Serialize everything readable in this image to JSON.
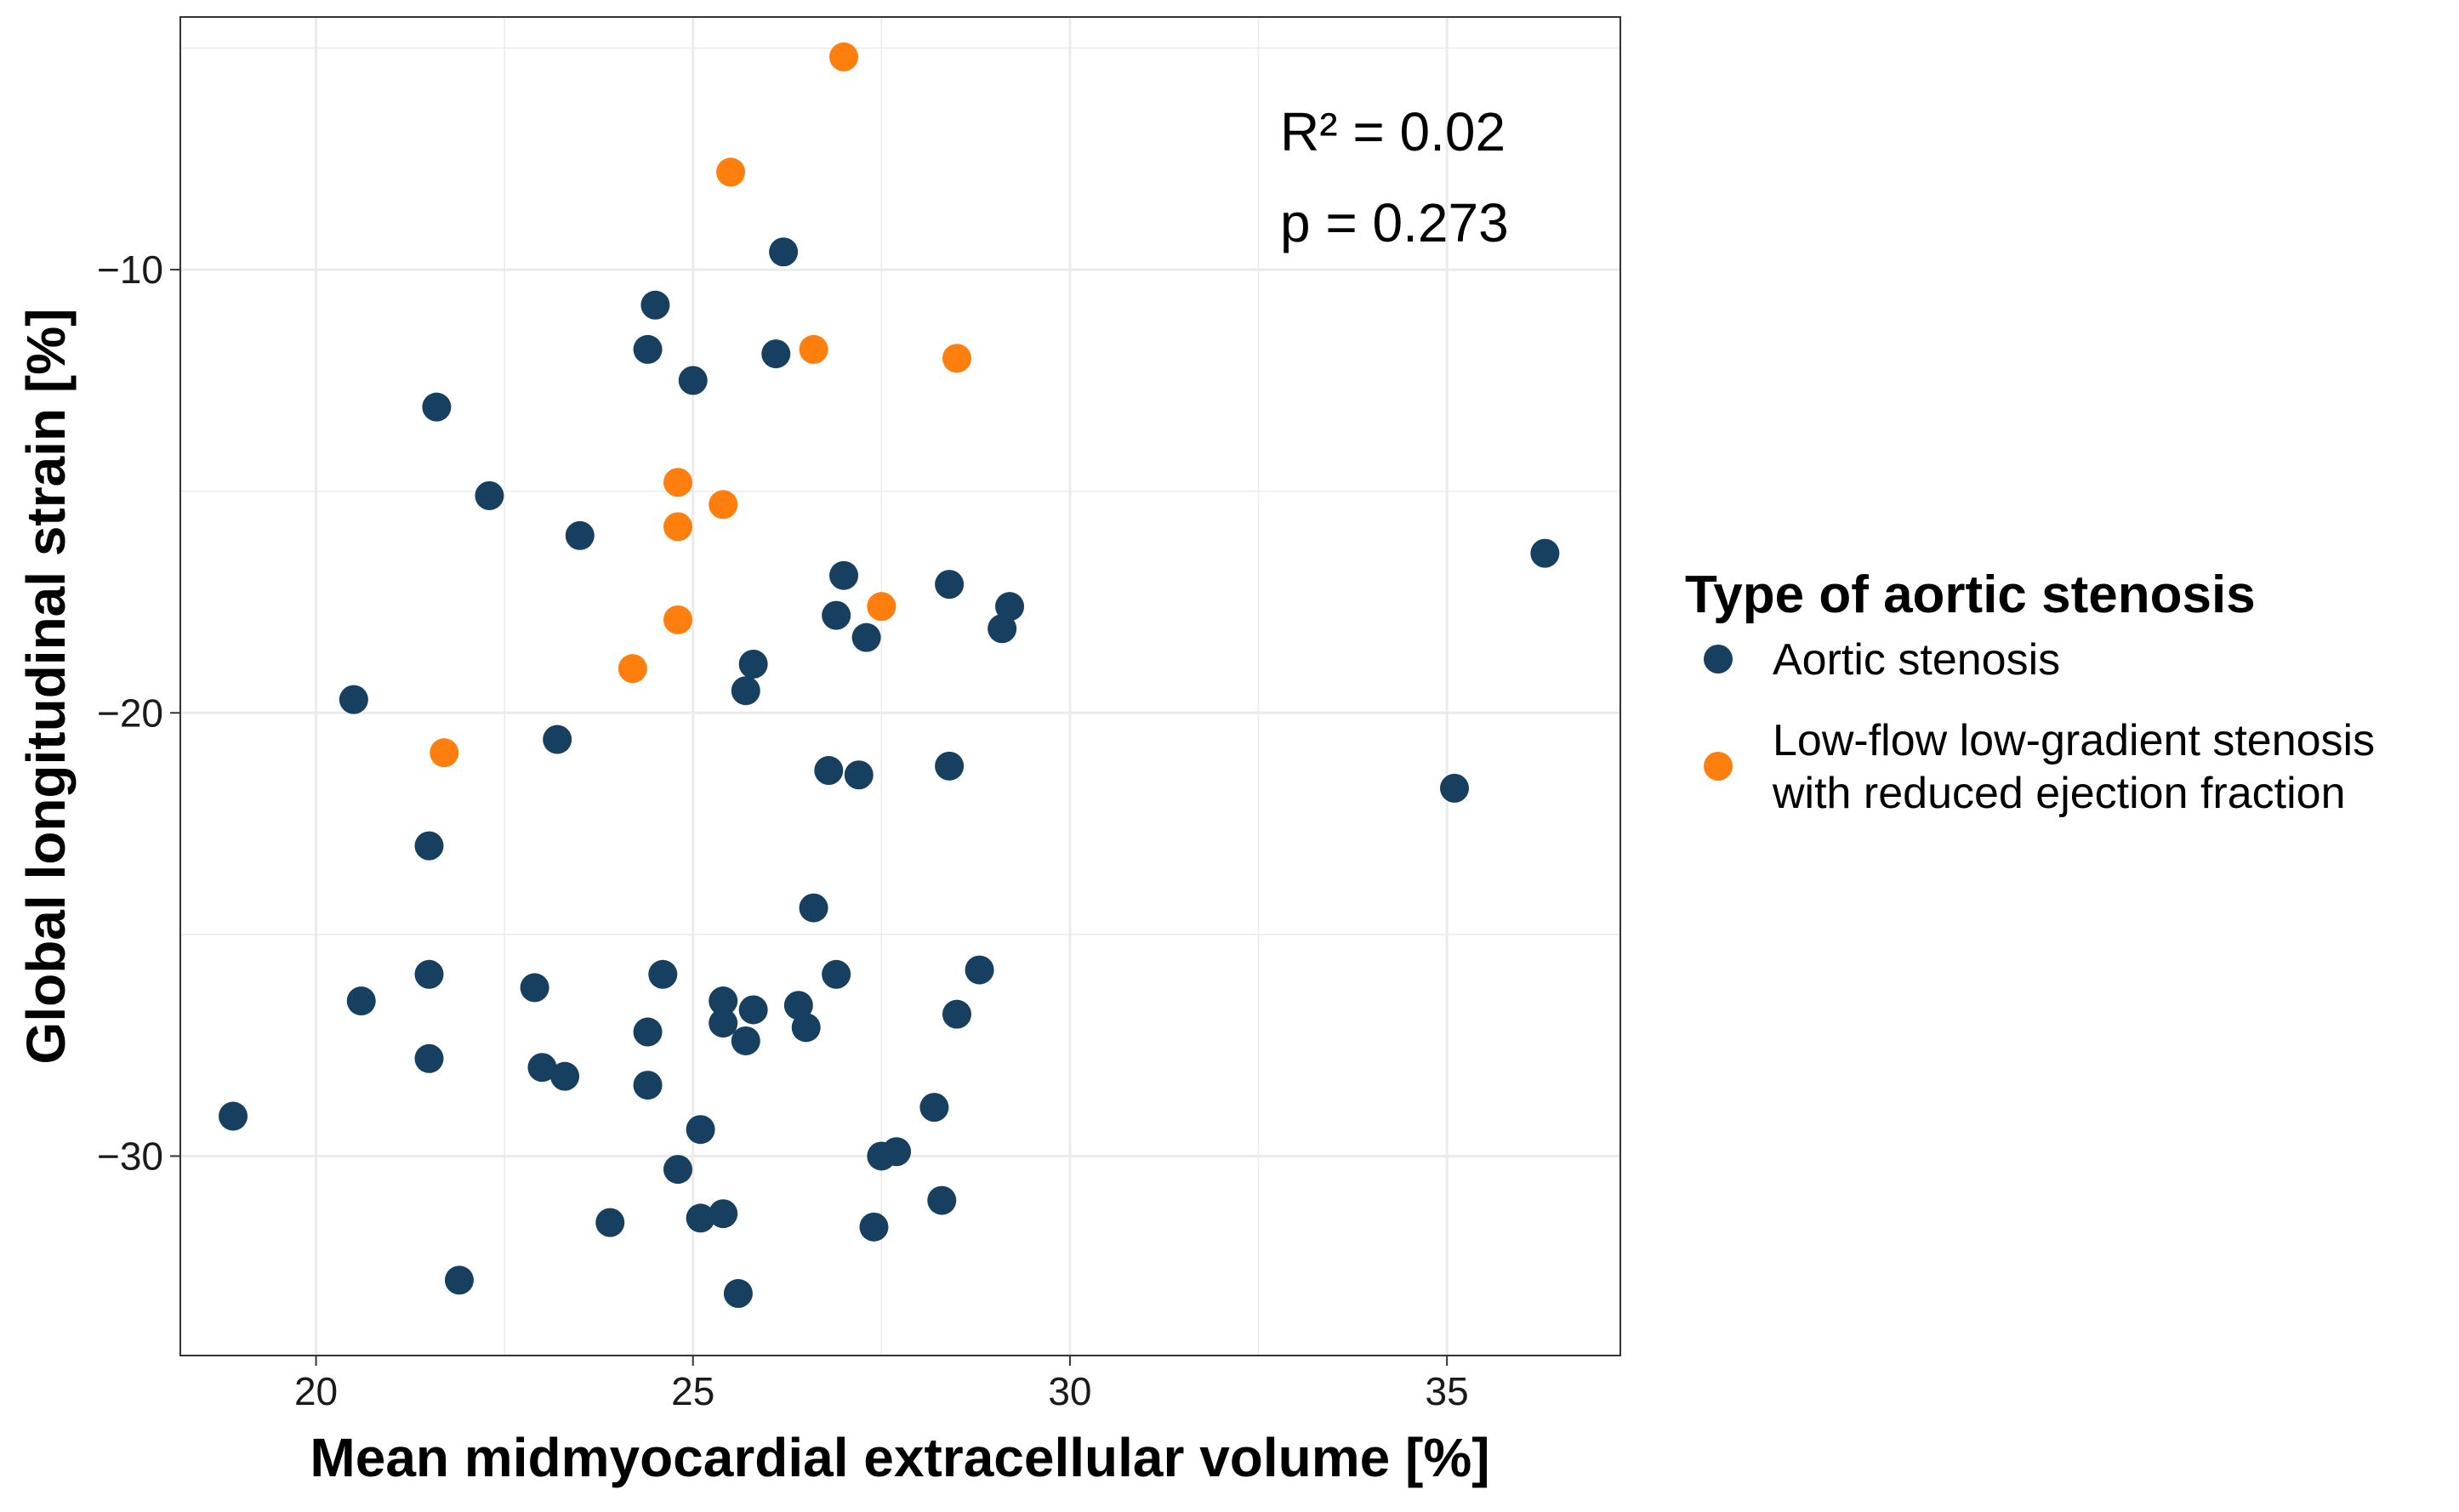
{
  "chart_data": {
    "type": "scatter",
    "title": "",
    "xlabel": "Mean midmyocardial extracellular volume [%]",
    "ylabel": "Global longitudinal strain [%]",
    "xlim": [
      18.2,
      37.3
    ],
    "ylim": [
      -34.5,
      -4.3
    ],
    "x_ticks": [
      20,
      25,
      30,
      35
    ],
    "y_ticks": [
      -10,
      -20,
      -30
    ],
    "grid": true,
    "legend": {
      "title": "Type of aortic stenosis",
      "placement": "right"
    },
    "annotations": [
      "R² = 0.02",
      "p = 0.273"
    ],
    "colors": {
      "Aortic stenosis": "#173f5f",
      "Low-flow low-gradient stenosis with reduced ejection fraction": "#ff7f0e",
      "grid": "#ebebeb",
      "panel_border": "#333333"
    },
    "series": [
      {
        "name": "Aortic stenosis",
        "legend_lines": [
          "Aortic stenosis"
        ],
        "color": "#173f5f",
        "points": [
          [
            18.9,
            -29.1
          ],
          [
            20.5,
            -19.7
          ],
          [
            20.6,
            -26.5
          ],
          [
            21.5,
            -23.0
          ],
          [
            21.5,
            -25.9
          ],
          [
            21.5,
            -27.8
          ],
          [
            21.6,
            -13.1
          ],
          [
            21.9,
            -32.8
          ],
          [
            22.3,
            -15.1
          ],
          [
            22.9,
            -26.2
          ],
          [
            23.0,
            -28.0
          ],
          [
            23.2,
            -20.6
          ],
          [
            23.3,
            -28.2
          ],
          [
            23.5,
            -16.0
          ],
          [
            23.9,
            -31.5
          ],
          [
            24.4,
            -11.8
          ],
          [
            24.4,
            -27.2
          ],
          [
            24.4,
            -28.4
          ],
          [
            24.5,
            -10.8
          ],
          [
            24.6,
            -25.9
          ],
          [
            24.8,
            -30.3
          ],
          [
            25.0,
            -12.5
          ],
          [
            25.1,
            -29.4
          ],
          [
            25.1,
            -31.4
          ],
          [
            25.4,
            -26.5
          ],
          [
            25.4,
            -27.0
          ],
          [
            25.4,
            -31.3
          ],
          [
            25.6,
            -33.1
          ],
          [
            25.7,
            -19.5
          ],
          [
            25.7,
            -27.4
          ],
          [
            25.8,
            -18.9
          ],
          [
            25.8,
            -26.7
          ],
          [
            26.1,
            -11.9
          ],
          [
            26.2,
            -9.6
          ],
          [
            26.4,
            -26.6
          ],
          [
            26.5,
            -27.1
          ],
          [
            26.6,
            -24.4
          ],
          [
            26.8,
            -21.3
          ],
          [
            26.9,
            -17.8
          ],
          [
            26.9,
            -25.9
          ],
          [
            27.0,
            -16.9
          ],
          [
            27.2,
            -21.4
          ],
          [
            27.3,
            -18.3
          ],
          [
            27.4,
            -31.6
          ],
          [
            27.5,
            -30.0
          ],
          [
            27.7,
            -29.9
          ],
          [
            28.2,
            -28.9
          ],
          [
            28.3,
            -31.0
          ],
          [
            28.4,
            -17.1
          ],
          [
            28.4,
            -21.2
          ],
          [
            28.5,
            -26.8
          ],
          [
            28.8,
            -25.8
          ],
          [
            29.1,
            -18.1
          ],
          [
            29.2,
            -17.6
          ],
          [
            35.1,
            -21.7
          ],
          [
            36.3,
            -16.4
          ]
        ]
      },
      {
        "name": "Low-flow low-gradient stenosis with reduced ejection fraction",
        "legend_lines": [
          "Low-flow low-gradient stenosis",
          "with reduced ejection fraction"
        ],
        "color": "#ff7f0e",
        "points": [
          [
            21.7,
            -20.9
          ],
          [
            24.2,
            -19.0
          ],
          [
            24.8,
            -14.8
          ],
          [
            24.8,
            -15.8
          ],
          [
            24.8,
            -17.9
          ],
          [
            25.4,
            -15.3
          ],
          [
            25.5,
            -7.8
          ],
          [
            26.6,
            -11.8
          ],
          [
            27.0,
            -5.2
          ],
          [
            27.5,
            -17.6
          ],
          [
            28.5,
            -12.0
          ]
        ]
      }
    ]
  }
}
